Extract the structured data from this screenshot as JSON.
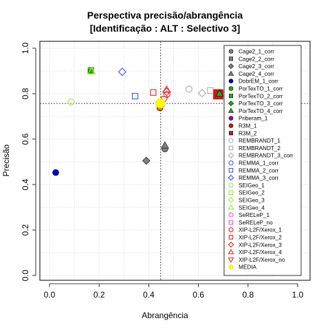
{
  "chart_data": {
    "type": "scatter",
    "title": "Perspectiva precisão/abrangência",
    "subtitle": "[Identificação : ALT : Selectivo 3]",
    "xlabel": "Abrangência",
    "ylabel": "Precisão",
    "xlim": [
      0,
      1
    ],
    "ylim": [
      0,
      1
    ],
    "xticks": [
      "0.0",
      "0.2",
      "0.4",
      "0.6",
      "0.8",
      "1.0"
    ],
    "yticks": [
      "0.0",
      "0.2",
      "0.4",
      "0.6",
      "0.8",
      "1.0"
    ],
    "grid": true,
    "legend_position": "right",
    "reference_lines": {
      "x": 0.448,
      "y": 0.757
    },
    "series": [
      {
        "name": "Cage2_1_corr",
        "color": "#808080",
        "marker": "circle-filled",
        "points": [
          [
            0.465,
            0.557
          ]
        ]
      },
      {
        "name": "Cage2_2_corr",
        "color": "#808080",
        "marker": "square-filled",
        "points": []
      },
      {
        "name": "Cage2_3_corr",
        "color": "#808080",
        "marker": "diamond-filled",
        "points": [
          [
            0.39,
            0.505
          ]
        ]
      },
      {
        "name": "Cage2_4_corr",
        "color": "#808080",
        "marker": "triangle-filled",
        "points": [
          [
            0.465,
            0.572
          ]
        ]
      },
      {
        "name": "DobrEM_1_corr",
        "color": "#0000cd",
        "marker": "circle-filled",
        "points": [
          [
            0.025,
            0.453
          ]
        ]
      },
      {
        "name": "PorTexTO_1_corr",
        "color": "#22aa22",
        "marker": "circle-filled",
        "points": []
      },
      {
        "name": "PorTexTO_2_corr",
        "color": "#22aa22",
        "marker": "square-filled",
        "points": [
          [
            0.167,
            0.903
          ]
        ]
      },
      {
        "name": "PorTexTO_3_corr",
        "color": "#22aa22",
        "marker": "diamond-filled",
        "points": []
      },
      {
        "name": "PorTexTO_4_corr",
        "color": "#22aa22",
        "marker": "triangle-filled",
        "points": []
      },
      {
        "name": "Priberam_1",
        "color": "#9900cc",
        "marker": "circle-filled",
        "points": []
      },
      {
        "name": "R3M_1",
        "color": "#b22222",
        "marker": "circle-filled",
        "points": []
      },
      {
        "name": "R3M_2",
        "color": "#b22222",
        "marker": "square-filled",
        "points": []
      },
      {
        "name": "REMBRANDT_1",
        "color": "#aaaaaa",
        "marker": "circle-open",
        "points": [
          [
            0.562,
            0.82
          ]
        ]
      },
      {
        "name": "REMBRANDT_2",
        "color": "#aaaaaa",
        "marker": "square-open",
        "points": [
          [
            0.648,
            0.814
          ]
        ]
      },
      {
        "name": "REMBRANDT_3_corr",
        "color": "#aaaaaa",
        "marker": "diamond-open",
        "points": [
          [
            0.615,
            0.802
          ]
        ]
      },
      {
        "name": "REMMA_1_corr",
        "color": "#3355ff",
        "marker": "circle-open",
        "points": []
      },
      {
        "name": "REMMA_2_corr",
        "color": "#3355ff",
        "marker": "square-open",
        "points": [
          [
            0.345,
            0.789
          ]
        ]
      },
      {
        "name": "REMMA_3_corr",
        "color": "#3355ff",
        "marker": "diamond-open",
        "points": [
          [
            0.293,
            0.896
          ]
        ]
      },
      {
        "name": "SEIGeo_1",
        "color": "#99ee33",
        "marker": "circle-open",
        "points": [
          [
            0.087,
            0.763
          ]
        ]
      },
      {
        "name": "SEIGeo_2",
        "color": "#99ee33",
        "marker": "square-open",
        "points": [
          [
            0.165,
            0.9
          ]
        ]
      },
      {
        "name": "SEIGeo_3",
        "color": "#99ee33",
        "marker": "diamond-open",
        "points": []
      },
      {
        "name": "SEIGeo_4",
        "color": "#99ee33",
        "marker": "triangle-open",
        "points": [
          [
            0.17,
            0.898
          ]
        ]
      },
      {
        "name": "SeRELeP_1",
        "color": "#ff44ff",
        "marker": "circle-open",
        "points": []
      },
      {
        "name": "SeRELeP_no",
        "color": "#ff44ff",
        "marker": "square-open",
        "points": []
      },
      {
        "name": "XIP-L2F/Xerox_1",
        "color": "#ee2222",
        "marker": "circle-open",
        "points": [
          [
            0.473,
            0.797
          ]
        ]
      },
      {
        "name": "XIP-L2F/Xerox_2",
        "color": "#ee2222",
        "marker": "square-open",
        "points": [
          [
            0.418,
            0.805
          ]
        ]
      },
      {
        "name": "XIP-L2F/Xerox_3",
        "color": "#ee2222",
        "marker": "diamond-open",
        "points": [
          [
            0.472,
            0.808
          ]
        ]
      },
      {
        "name": "XIP-L2F/Xerox_4",
        "color": "#ee2222",
        "marker": "triangle-open",
        "points": [
          [
            0.472,
            0.817
          ]
        ]
      },
      {
        "name": "XIP-L2F/Xerox_no",
        "color": "#ee2222",
        "marker": "triangle-down-open",
        "points": [
          [
            0.463,
            0.775
          ]
        ]
      },
      {
        "name": "MÉDIA",
        "color": "#ffff00",
        "marker": "circle-filled",
        "points": [
          [
            0.447,
            0.757
          ]
        ]
      }
    ],
    "extra_points": [
      {
        "x": 0.445,
        "y": 0.738,
        "color": "#ff6600",
        "marker": "circle-filled"
      },
      {
        "x": 0.68,
        "y": 0.797,
        "color": "#dd1111",
        "marker": "square-filled-large"
      },
      {
        "x": 0.685,
        "y": 0.8,
        "color": "#22aa22",
        "marker": "triangle-filled"
      }
    ]
  }
}
